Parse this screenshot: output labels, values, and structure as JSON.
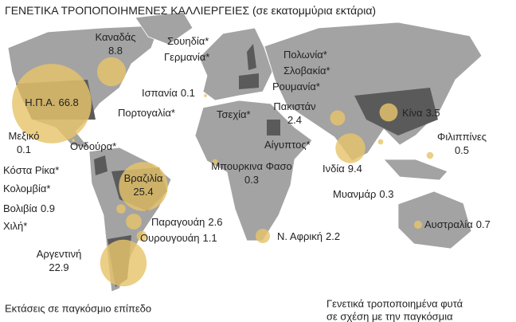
{
  "title": "ΓΕΝΕΤΙΚΑ ΤΡΟΠΟΠΟΙΗΜΕΝΕΣ ΚΑΛΛΙΕΡΓΕΙΕΣ",
  "subtitle": "(σε εκατομμύρια εκτάρια)",
  "countries": [
    {
      "name": "Καναδάς",
      "value": 8.8
    },
    {
      "name": "Η.Π.Α.",
      "value": 66.8
    },
    {
      "name": "Μεξικό",
      "value": 0.1
    },
    {
      "name": "Ονδούρα*",
      "value": null
    },
    {
      "name": "Κόστα Ρίκα*",
      "value": null
    },
    {
      "name": "Κολομβία*",
      "value": null
    },
    {
      "name": "Βολιβία",
      "value": 0.9
    },
    {
      "name": "Χιλή*",
      "value": null
    },
    {
      "name": "Βραζιλία",
      "value": 25.4
    },
    {
      "name": "Παραγουάη",
      "value": 2.6
    },
    {
      "name": "Ουρουγουάη",
      "value": 1.1
    },
    {
      "name": "Αργεντινή",
      "value": 22.9
    },
    {
      "name": "Ισπανία",
      "value": 0.1
    },
    {
      "name": "Πορτογαλία*",
      "value": null
    },
    {
      "name": "Σουηδία*",
      "value": null
    },
    {
      "name": "Γερμανία*",
      "value": null
    },
    {
      "name": "Τσεχία*",
      "value": null
    },
    {
      "name": "Πολωνία*",
      "value": null
    },
    {
      "name": "Σλοβακία*",
      "value": null
    },
    {
      "name": "Ρουμανία*",
      "value": null
    },
    {
      "name": "Πακιστάν",
      "value": 2.4
    },
    {
      "name": "Κίνα",
      "value": 3.5
    },
    {
      "name": "Αίγυπτος*",
      "value": null
    },
    {
      "name": "Μπουρκινα Φασο",
      "value": 0.3
    },
    {
      "name": "Ινδία",
      "value": 9.4
    },
    {
      "name": "Μυανμάρ",
      "value": 0.3
    },
    {
      "name": "Φιλιππίνες",
      "value": 0.5
    },
    {
      "name": "Ν. Αφρική",
      "value": 2.2
    },
    {
      "name": "Αυστραλία",
      "value": 0.7
    }
  ],
  "footer": {
    "left": "Εκτάσεις σε παγκόσμιο επίπεδο",
    "right": [
      "Γενετικά τροποποιημένα φυτά",
      "σε σχέση με την παγκόσμια"
    ]
  }
}
